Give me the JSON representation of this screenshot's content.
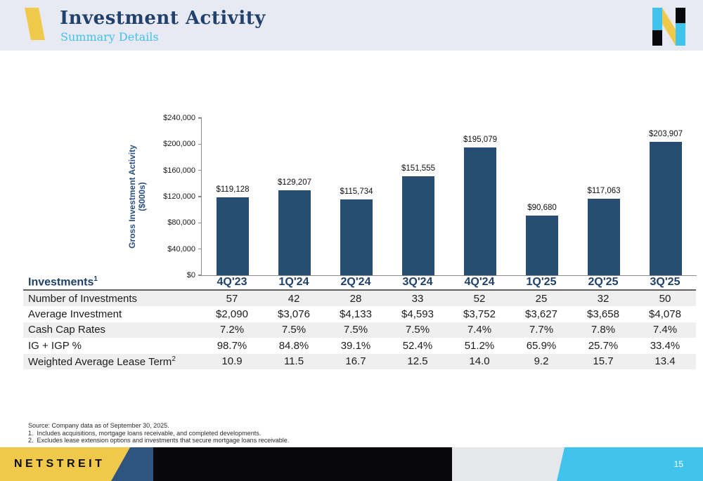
{
  "header": {
    "title": "Investment Activity",
    "subtitle": "Summary Details"
  },
  "chart_data": {
    "type": "bar",
    "categories": [
      "4Q'23",
      "1Q'24",
      "2Q'24",
      "3Q'24",
      "4Q'24",
      "1Q'25",
      "2Q'25",
      "3Q'25"
    ],
    "values": [
      119128,
      129207,
      115734,
      151555,
      195079,
      90680,
      117063,
      203907
    ],
    "value_labels": [
      "$119,128",
      "$129,207",
      "$115,734",
      "$151,555",
      "$195,079",
      "$90,680",
      "$117,063",
      "$203,907"
    ],
    "ylabel_line1": "Gross Investment Activity",
    "ylabel_line2": "($000s)",
    "ylim": [
      0,
      240000
    ],
    "ytick_labels": [
      "$0",
      "$40,000",
      "$80,000",
      "$120,000",
      "$160,000",
      "$200,000",
      "$240,000"
    ],
    "grid": "off",
    "legend": "none",
    "bar_color": "#274e72"
  },
  "table": {
    "title": "Investments",
    "title_sup": "1",
    "columns": [
      "4Q'23",
      "1Q'24",
      "2Q'24",
      "3Q'24",
      "4Q'24",
      "1Q'25",
      "2Q'25",
      "3Q'25"
    ],
    "rows": [
      {
        "label": "Number of Investments",
        "sup": "",
        "values": [
          "57",
          "42",
          "28",
          "33",
          "52",
          "25",
          "32",
          "50"
        ]
      },
      {
        "label": "Average Investment",
        "sup": "",
        "values": [
          "$2,090",
          "$3,076",
          "$4,133",
          "$4,593",
          "$3,752",
          "$3,627",
          "$3,658",
          "$4,078"
        ]
      },
      {
        "label": "Cash Cap Rates",
        "sup": "",
        "values": [
          "7.2%",
          "7.5%",
          "7.5%",
          "7.5%",
          "7.4%",
          "7.7%",
          "7.8%",
          "7.4%"
        ]
      },
      {
        "label": "IG + IGP %",
        "sup": "",
        "values": [
          "98.7%",
          "84.8%",
          "39.1%",
          "52.4%",
          "51.2%",
          "65.9%",
          "25.7%",
          "33.4%"
        ]
      },
      {
        "label": "Weighted Average Lease Term",
        "sup": "2",
        "values": [
          "10.9",
          "11.5",
          "16.7",
          "12.5",
          "14.0",
          "9.2",
          "15.7",
          "13.4"
        ]
      }
    ]
  },
  "footnotes": [
    "Source: Company data as of September 30, 2025.",
    "1.  Includes acquisitions, mortgage loans receivable, and completed developments.",
    "2.  Excludes lease extension options and investments that secure mortgage loans receivable."
  ],
  "footer": {
    "brand": "NETSTREIT",
    "page_number": "15"
  },
  "colors": {
    "header_band": "#e8eaf3",
    "title_navy": "#21406b",
    "subtitle_cyan": "#41c1e9",
    "bar_navy": "#274e72",
    "accent_yellow": "#f0c94a",
    "footer_navy": "#2f547d",
    "footer_black": "#08080c",
    "footer_cyan": "#41c4ec",
    "row_stripe": "#efefef"
  }
}
